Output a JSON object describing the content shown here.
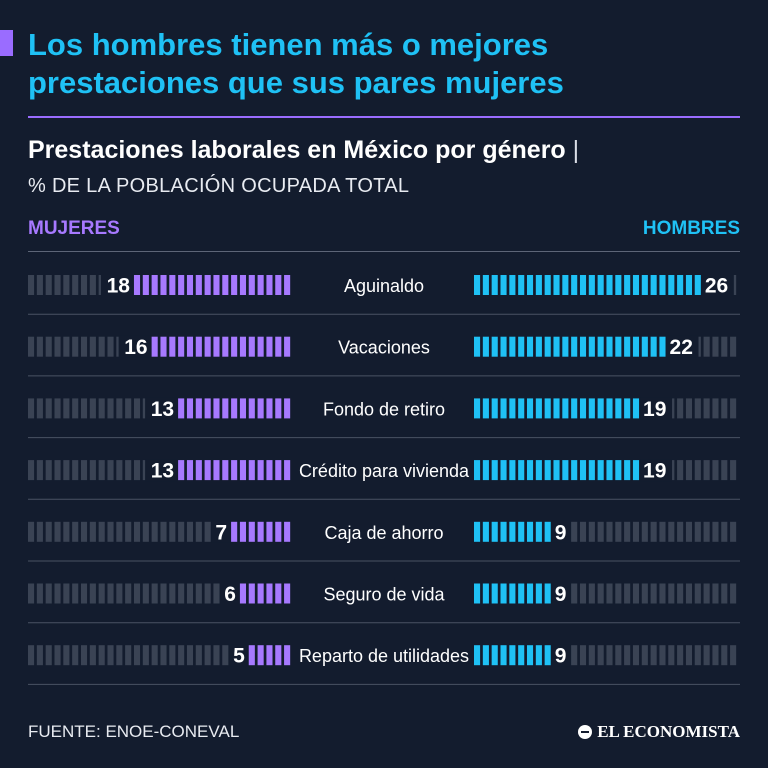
{
  "headline": {
    "line1": "Los hombres tienen más o mejores",
    "line2": "prestaciones que sus pares mujeres"
  },
  "subtitle": "Prestaciones laborales en México por género",
  "subtitle_separator": "|",
  "units": "% DE LA POBLACIÓN OCUPADA TOTAL",
  "legend": {
    "left": "MUJERES",
    "right": "HOMBRES"
  },
  "source": "FUENTE: ENOE-CONEVAL",
  "brand": "EL ECONOMISTA",
  "colors": {
    "background": "#131c2e",
    "women": "#a779ff",
    "men": "#1fc1f5",
    "empty_segment": "#3a4354",
    "headline": "#1fc1f5",
    "accent": "#9a6cff"
  },
  "chart_data": {
    "type": "bar",
    "orientation": "horizontal-diverging",
    "scale_max": 30,
    "categories": [
      "Aguinaldo",
      "Vacaciones",
      "Fondo de retiro",
      "Crédito para vivienda",
      "Caja de ahorro",
      "Seguro de vida",
      "Reparto de utilidades"
    ],
    "series": [
      {
        "name": "MUJERES",
        "values": [
          18,
          16,
          13,
          13,
          7,
          6,
          5
        ]
      },
      {
        "name": "HOMBRES",
        "values": [
          26,
          22,
          19,
          19,
          9,
          9,
          9
        ]
      }
    ]
  }
}
